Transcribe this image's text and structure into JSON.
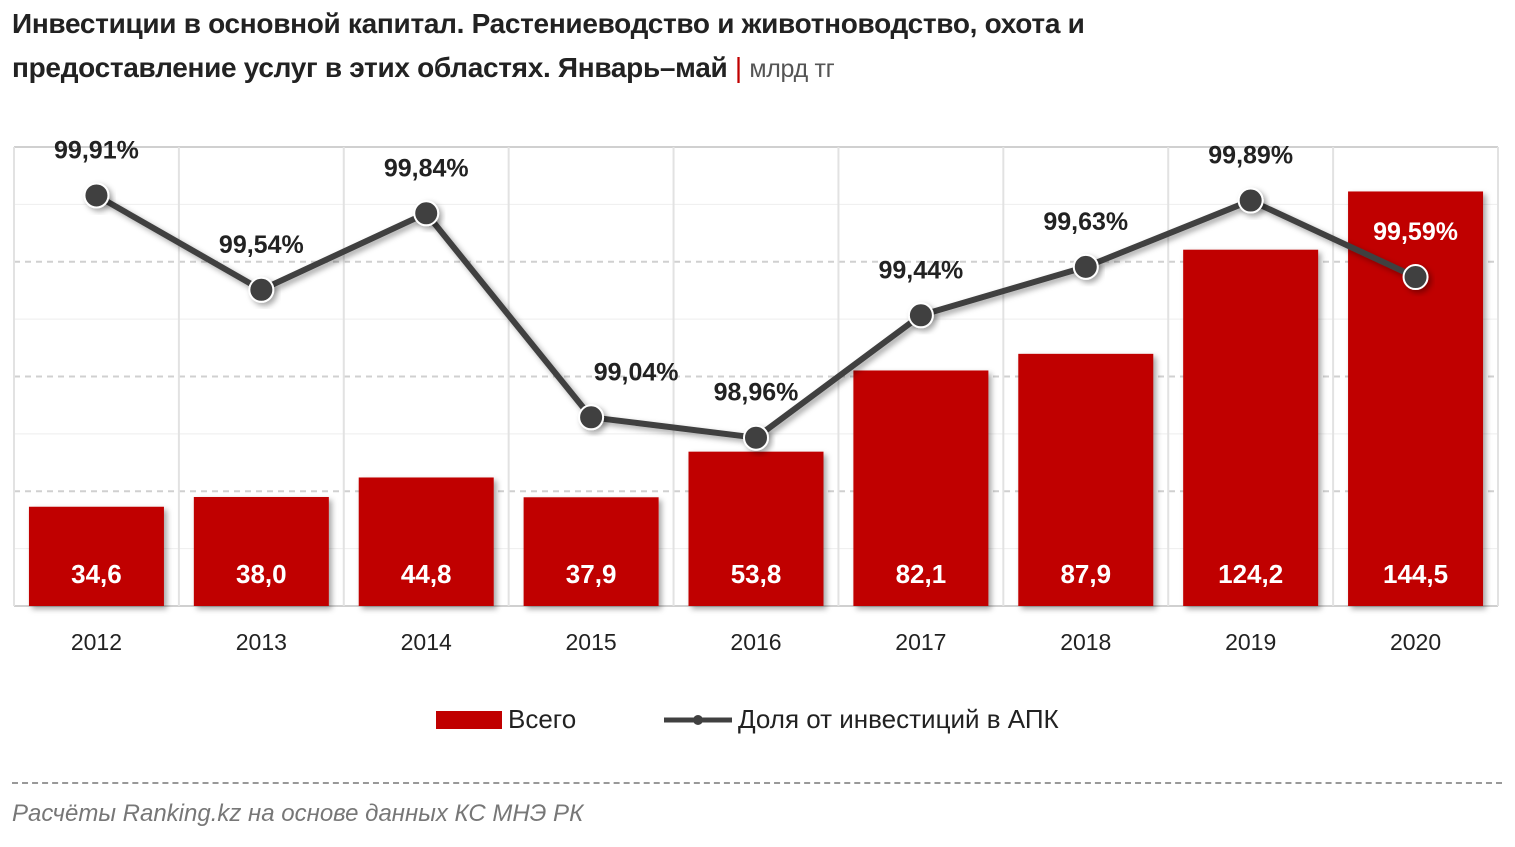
{
  "title": "Инвестиции в основной капитал. Растениеводство и животноводство, охота и предоставление услуг в этих областях. Январь–май",
  "unit": "млрд тг",
  "source": "Расчёты Ranking.kz на основе данных КС МНЭ РК",
  "colors": {
    "bar": "#c00000",
    "line": "#404040",
    "grid": "#d9d9d9"
  },
  "chart_data": {
    "type": "bar+line",
    "title": "Инвестиции в основной капитал. Растениеводство и животноводство, охота и предоставление услуг в этих областях. Январь–май",
    "categories": [
      "2012",
      "2013",
      "2014",
      "2015",
      "2016",
      "2017",
      "2018",
      "2019",
      "2020"
    ],
    "series": [
      {
        "name": "Всего",
        "type": "bar",
        "axis": "primary",
        "values": [
          34.6,
          38.0,
          44.8,
          37.9,
          53.8,
          82.1,
          87.9,
          124.2,
          144.5
        ],
        "labels": [
          "34,6",
          "38,0",
          "44,8",
          "37,9",
          "53,8",
          "82,1",
          "87,9",
          "124,2",
          "144,5"
        ]
      },
      {
        "name": "Доля от инвестиций в АПК",
        "type": "line",
        "axis": "secondary",
        "values": [
          99.91,
          99.54,
          99.84,
          99.04,
          98.96,
          99.44,
          99.63,
          99.89,
          99.59
        ],
        "labels": [
          "99,91%",
          "99,54%",
          "99,84%",
          "99,04%",
          "98,96%",
          "99,44%",
          "99,63%",
          "99,89%",
          "99,59%"
        ]
      }
    ],
    "ylim": [
      0,
      160
    ],
    "y2lim": [
      98.3,
      100.1
    ],
    "grid": true,
    "legend": "bottom"
  }
}
